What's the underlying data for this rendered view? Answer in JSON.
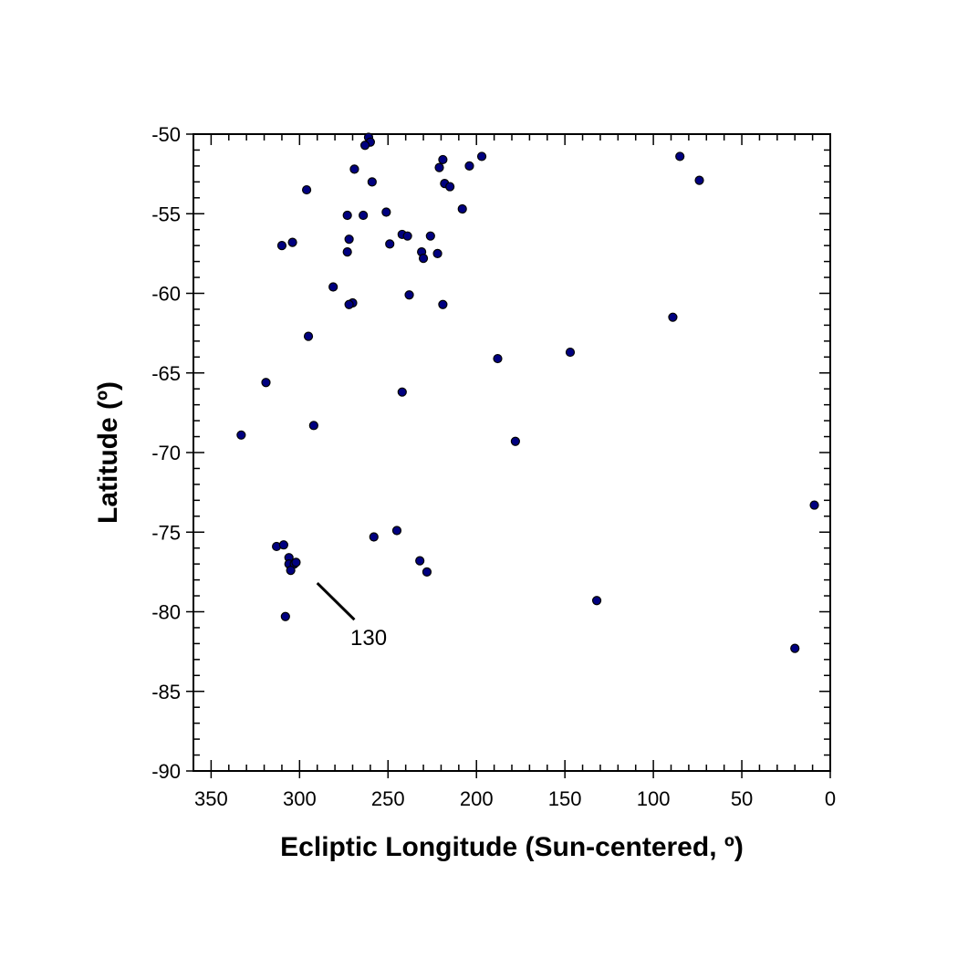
{
  "chart_data": {
    "type": "scatter",
    "title": "",
    "xlabel": "Ecliptic Longitude (Sun-centered, º)",
    "ylabel": "Latitude (º)",
    "xlim": [
      360,
      0
    ],
    "ylim": [
      -90,
      -50
    ],
    "x_reversed": true,
    "x_ticks": [
      350,
      300,
      250,
      200,
      150,
      100,
      50,
      0
    ],
    "x_tick_labels": [
      "350",
      "300",
      "250",
      "200",
      "150",
      "100",
      "50",
      "0"
    ],
    "y_ticks": [
      -50,
      -55,
      -60,
      -65,
      -70,
      -75,
      -80,
      -85,
      -90
    ],
    "y_tick_labels": [
      "-50",
      "-55",
      "-60",
      "-65",
      "-70",
      "-75",
      "-80",
      "-85",
      "-90"
    ],
    "grid": false,
    "legend": "none",
    "marker_color": "#000080",
    "marker_edge_color": "#000000",
    "annotation": {
      "text": "130",
      "line_from": [
        290,
        -78.2
      ],
      "line_to": [
        269,
        -80.5
      ]
    },
    "points": [
      [
        261,
        -50.2
      ],
      [
        260,
        -50.5
      ],
      [
        263,
        -50.7
      ],
      [
        269,
        -52.2
      ],
      [
        259,
        -53.0
      ],
      [
        296,
        -53.5
      ],
      [
        219,
        -51.6
      ],
      [
        221,
        -52.1
      ],
      [
        204,
        -52.0
      ],
      [
        197,
        -51.4
      ],
      [
        218,
        -53.1
      ],
      [
        215,
        -53.3
      ],
      [
        85,
        -51.4
      ],
      [
        74,
        -52.9
      ],
      [
        273,
        -55.1
      ],
      [
        264,
        -55.1
      ],
      [
        251,
        -54.9
      ],
      [
        208,
        -54.7
      ],
      [
        310,
        -57.0
      ],
      [
        304,
        -56.8
      ],
      [
        272,
        -56.6
      ],
      [
        273,
        -57.4
      ],
      [
        249,
        -56.9
      ],
      [
        242,
        -56.3
      ],
      [
        239,
        -56.4
      ],
      [
        226,
        -56.4
      ],
      [
        231,
        -57.4
      ],
      [
        230,
        -57.8
      ],
      [
        222,
        -57.5
      ],
      [
        281,
        -59.6
      ],
      [
        270,
        -60.6
      ],
      [
        272,
        -60.7
      ],
      [
        238,
        -60.1
      ],
      [
        219,
        -60.7
      ],
      [
        89,
        -61.5
      ],
      [
        295,
        -62.7
      ],
      [
        188,
        -64.1
      ],
      [
        147,
        -63.7
      ],
      [
        319,
        -65.6
      ],
      [
        242,
        -66.2
      ],
      [
        333,
        -68.9
      ],
      [
        292,
        -68.3
      ],
      [
        178,
        -69.3
      ],
      [
        9,
        -73.3
      ],
      [
        245,
        -74.9
      ],
      [
        258,
        -75.3
      ],
      [
        313,
        -75.9
      ],
      [
        309,
        -75.8
      ],
      [
        306,
        -76.6
      ],
      [
        306,
        -77.0
      ],
      [
        303,
        -77.0
      ],
      [
        302,
        -76.9
      ],
      [
        305,
        -77.4
      ],
      [
        232,
        -76.8
      ],
      [
        228,
        -77.5
      ],
      [
        132,
        -79.3
      ],
      [
        308,
        -80.3
      ],
      [
        20,
        -82.3
      ]
    ]
  }
}
